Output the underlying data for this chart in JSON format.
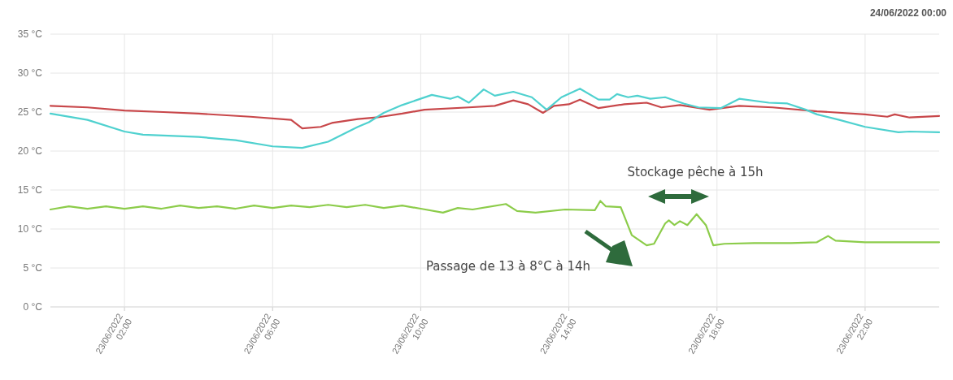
{
  "chart_data": {
    "type": "line",
    "annotations": [
      "24/06/2022 00:00",
      "Stockage pêche à 15h",
      "Passage de 13 à 8°C à 14h"
    ],
    "xlim": [
      "2022-06-23T00:00",
      "2022-06-24T00:00"
    ],
    "xticks": [
      {
        "value": "2022-06-23T02:00",
        "label": "23/06/2022 02:00"
      },
      {
        "value": "2022-06-23T06:00",
        "label": "23/06/2022 06:00"
      },
      {
        "value": "2022-06-23T10:00",
        "label": "23/06/2022 10:00"
      },
      {
        "value": "2022-06-23T14:00",
        "label": "23/06/2022 14:00"
      },
      {
        "value": "2022-06-23T18:00",
        "label": "23/06/2022 18:00"
      },
      {
        "value": "2022-06-23T22:00",
        "label": "23/06/2022 22:00"
      }
    ],
    "ylim": [
      0,
      35
    ],
    "yticks": [
      {
        "value": 0,
        "label": "0 °C"
      },
      {
        "value": 5,
        "label": "5 °C"
      },
      {
        "value": 10,
        "label": "10 °C"
      },
      {
        "value": 15,
        "label": "15 °C"
      },
      {
        "value": 20,
        "label": "20 °C"
      },
      {
        "value": 25,
        "label": "25 °C"
      },
      {
        "value": 30,
        "label": "30 °C"
      },
      {
        "value": 35,
        "label": "35 °C"
      }
    ],
    "grid": true,
    "marker": "none",
    "line_style": "solid",
    "series": [
      {
        "color": "#c8474a",
        "x": [
          "2022-06-23T00:00",
          "2022-06-23T01:00",
          "2022-06-23T02:00",
          "2022-06-23T03:03",
          "2022-06-23T04:00",
          "2022-06-23T05:24",
          "2022-06-23T06:30",
          "2022-06-23T06:48",
          "2022-06-23T07:18",
          "2022-06-23T07:36",
          "2022-06-23T08:18",
          "2022-06-23T08:48",
          "2022-06-23T09:30",
          "2022-06-23T10:06",
          "2022-06-23T11:18",
          "2022-06-23T12:00",
          "2022-06-23T12:30",
          "2022-06-23T12:54",
          "2022-06-23T13:18",
          "2022-06-23T13:36",
          "2022-06-23T14:00",
          "2022-06-23T14:18",
          "2022-06-23T14:48",
          "2022-06-23T15:30",
          "2022-06-23T16:06",
          "2022-06-23T16:30",
          "2022-06-23T17:00",
          "2022-06-23T17:48",
          "2022-06-23T18:36",
          "2022-06-23T19:30",
          "2022-06-23T20:42",
          "2022-06-23T22:00",
          "2022-06-23T22:36",
          "2022-06-23T22:48",
          "2022-06-23T23:12",
          "2022-06-24T00:00"
        ],
        "values": [
          25.8,
          25.6,
          25.2,
          25.0,
          24.8,
          24.4,
          24.0,
          22.9,
          23.1,
          23.6,
          24.1,
          24.3,
          24.8,
          25.3,
          25.6,
          25.8,
          26.5,
          26.0,
          24.9,
          25.8,
          26.0,
          26.6,
          25.5,
          26.0,
          26.2,
          25.6,
          25.9,
          25.3,
          25.8,
          25.6,
          25.1,
          24.7,
          24.4,
          24.7,
          24.3,
          24.5
        ]
      },
      {
        "color": "#4fd1cf",
        "x": [
          "2022-06-23T00:00",
          "2022-06-23T01:00",
          "2022-06-23T02:00",
          "2022-06-23T02:30",
          "2022-06-23T04:00",
          "2022-06-23T05:00",
          "2022-06-23T06:00",
          "2022-06-23T06:48",
          "2022-06-23T07:30",
          "2022-06-23T08:18",
          "2022-06-23T08:36",
          "2022-06-23T09:00",
          "2022-06-23T09:30",
          "2022-06-23T10:18",
          "2022-06-23T10:48",
          "2022-06-23T11:00",
          "2022-06-23T11:18",
          "2022-06-23T11:42",
          "2022-06-23T12:00",
          "2022-06-23T12:30",
          "2022-06-23T13:00",
          "2022-06-23T13:24",
          "2022-06-23T13:48",
          "2022-06-23T14:18",
          "2022-06-23T14:48",
          "2022-06-23T15:06",
          "2022-06-23T15:18",
          "2022-06-23T15:36",
          "2022-06-23T15:51",
          "2022-06-23T16:12",
          "2022-06-23T16:36",
          "2022-06-23T17:06",
          "2022-06-23T17:30",
          "2022-06-23T18:06",
          "2022-06-23T18:36",
          "2022-06-23T19:24",
          "2022-06-23T19:54",
          "2022-06-23T20:24",
          "2022-06-23T20:42",
          "2022-06-23T21:18",
          "2022-06-23T22:00",
          "2022-06-23T22:54",
          "2022-06-23T23:12",
          "2022-06-24T00:00"
        ],
        "values": [
          24.8,
          24.0,
          22.5,
          22.1,
          21.8,
          21.4,
          20.6,
          20.4,
          21.2,
          23.1,
          23.7,
          24.9,
          25.9,
          27.2,
          26.7,
          27.0,
          26.2,
          27.9,
          27.1,
          27.6,
          26.9,
          25.3,
          26.9,
          28.0,
          26.6,
          26.6,
          27.3,
          26.9,
          27.1,
          26.7,
          26.9,
          26.1,
          25.6,
          25.5,
          26.7,
          26.2,
          26.1,
          25.3,
          24.7,
          24.0,
          23.1,
          22.4,
          22.5,
          22.4
        ]
      },
      {
        "color": "#8ccc4a",
        "x": [
          "2022-06-23T00:00",
          "2022-06-23T00:30",
          "2022-06-23T01:00",
          "2022-06-23T01:30",
          "2022-06-23T02:00",
          "2022-06-23T02:30",
          "2022-06-23T03:00",
          "2022-06-23T03:30",
          "2022-06-23T04:00",
          "2022-06-23T04:30",
          "2022-06-23T05:00",
          "2022-06-23T05:30",
          "2022-06-23T06:00",
          "2022-06-23T06:30",
          "2022-06-23T07:00",
          "2022-06-23T07:30",
          "2022-06-23T08:00",
          "2022-06-23T08:30",
          "2022-06-23T09:00",
          "2022-06-23T09:30",
          "2022-06-23T10:00",
          "2022-06-23T10:36",
          "2022-06-23T11:00",
          "2022-06-23T11:24",
          "2022-06-23T12:18",
          "2022-06-23T12:36",
          "2022-06-23T13:06",
          "2022-06-23T13:54",
          "2022-06-23T14:42",
          "2022-06-23T14:51",
          "2022-06-23T15:00",
          "2022-06-23T15:24",
          "2022-06-23T15:42",
          "2022-06-23T16:06",
          "2022-06-23T16:18",
          "2022-06-23T16:36",
          "2022-06-23T16:42",
          "2022-06-23T16:51",
          "2022-06-23T17:00",
          "2022-06-23T17:12",
          "2022-06-23T17:27",
          "2022-06-23T17:42",
          "2022-06-23T17:54",
          "2022-06-23T18:12",
          "2022-06-23T19:00",
          "2022-06-23T20:00",
          "2022-06-23T20:42",
          "2022-06-23T21:00",
          "2022-06-23T21:12",
          "2022-06-23T22:00",
          "2022-06-23T23:00",
          "2022-06-24T00:00"
        ],
        "values": [
          12.5,
          12.9,
          12.6,
          12.9,
          12.6,
          12.9,
          12.6,
          13.0,
          12.7,
          12.9,
          12.6,
          13.0,
          12.7,
          13.0,
          12.8,
          13.1,
          12.8,
          13.1,
          12.7,
          13.0,
          12.6,
          12.1,
          12.7,
          12.5,
          13.2,
          12.3,
          12.1,
          12.5,
          12.4,
          13.6,
          12.9,
          12.8,
          9.2,
          7.9,
          8.1,
          10.7,
          11.1,
          10.5,
          11.0,
          10.5,
          11.9,
          10.5,
          7.9,
          8.1,
          8.2,
          8.2,
          8.3,
          9.1,
          8.5,
          8.3,
          8.3,
          8.3
        ]
      }
    ]
  }
}
